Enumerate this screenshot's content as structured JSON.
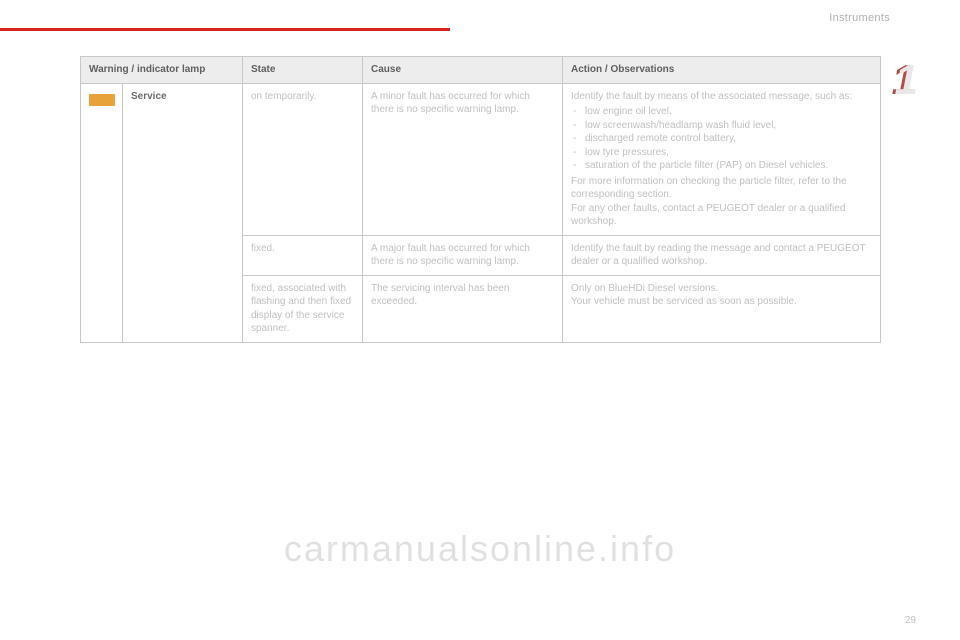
{
  "header": {
    "section": "Instruments",
    "chapter": "1"
  },
  "table": {
    "headers": {
      "lamp": "Warning / indicator lamp",
      "state": "State",
      "cause": "Cause",
      "action": "Action / Observations"
    },
    "lamp_label": "Service",
    "rows": [
      {
        "state": "on temporarily.",
        "cause": "A minor fault has occurred for which there is no specific warning lamp.",
        "action_intro": "Identify the fault by means of the associated message, such as:",
        "action_items": [
          "low engine oil level,",
          "low screenwash/headlamp wash fluid level,",
          "discharged remote control battery,",
          "low tyre pressures,",
          "saturation of the particle filter (PAP) on Diesel vehicles."
        ],
        "action_tail": "For more information on checking the particle filter, refer to the corresponding section.\nFor any other faults, contact a PEUGEOT dealer or a qualified workshop."
      },
      {
        "state": "fixed.",
        "cause": "A major fault has occurred for which there is no specific warning lamp.",
        "action": "Identify the fault by reading the message and contact a PEUGEOT dealer or a qualified workshop."
      },
      {
        "state": "fixed, associated with flashing and then fixed display of the service spanner.",
        "cause": "The servicing interval has been exceeded.",
        "action": "Only on BlueHDi Diesel versions.\nYour vehicle must be serviced as soon as possible."
      }
    ]
  },
  "watermark": "carmanualsonline.info",
  "page_number": "29"
}
